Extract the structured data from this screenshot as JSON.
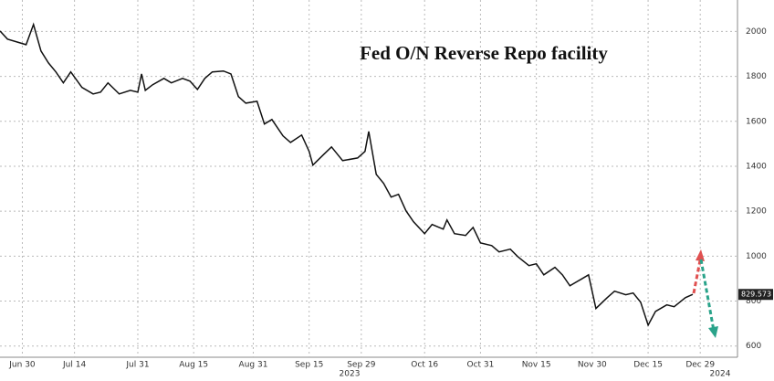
{
  "chart_data": {
    "type": "line",
    "title": "Fed O/N Reverse Repo facility",
    "x": [
      "2023-06-24",
      "2023-06-26",
      "2023-07-01",
      "2023-07-03",
      "2023-07-05",
      "2023-07-07",
      "2023-07-09",
      "2023-07-11",
      "2023-07-13",
      "2023-07-16",
      "2023-07-19",
      "2023-07-21",
      "2023-07-23",
      "2023-07-26",
      "2023-07-29",
      "2023-07-31",
      "2023-08-01",
      "2023-08-02",
      "2023-08-04",
      "2023-08-07",
      "2023-08-09",
      "2023-08-12",
      "2023-08-14",
      "2023-08-16",
      "2023-08-18",
      "2023-08-20",
      "2023-08-23",
      "2023-08-25",
      "2023-08-27",
      "2023-08-29",
      "2023-09-01",
      "2023-09-03",
      "2023-09-05",
      "2023-09-08",
      "2023-09-10",
      "2023-09-13",
      "2023-09-15",
      "2023-09-16",
      "2023-09-19",
      "2023-09-21",
      "2023-09-24",
      "2023-09-28",
      "2023-09-30",
      "2023-10-01",
      "2023-10-03",
      "2023-10-05",
      "2023-10-07",
      "2023-10-09",
      "2023-10-11",
      "2023-10-13",
      "2023-10-16",
      "2023-10-18",
      "2023-10-21",
      "2023-10-22",
      "2023-10-24",
      "2023-10-27",
      "2023-10-29",
      "2023-10-31",
      "2023-11-03",
      "2023-11-05",
      "2023-11-08",
      "2023-11-10",
      "2023-11-13",
      "2023-11-15",
      "2023-11-17",
      "2023-11-20",
      "2023-11-22",
      "2023-11-24",
      "2023-11-27",
      "2023-11-29",
      "2023-12-01",
      "2023-12-04",
      "2023-12-06",
      "2023-12-09",
      "2023-12-11",
      "2023-12-13",
      "2023-12-15",
      "2023-12-17",
      "2023-12-20",
      "2023-12-22",
      "2023-12-25",
      "2023-12-27"
    ],
    "series": [
      {
        "color": "#111111",
        "values": [
          2002,
          1966,
          1941,
          2031,
          1913,
          1860,
          1820,
          1771,
          1820,
          1751,
          1722,
          1730,
          1771,
          1722,
          1738,
          1730,
          1811,
          1738,
          1763,
          1791,
          1771,
          1791,
          1779,
          1742,
          1791,
          1820,
          1824,
          1811,
          1710,
          1681,
          1689,
          1588,
          1608,
          1535,
          1506,
          1539,
          1466,
          1405,
          1454,
          1486,
          1425,
          1437,
          1466,
          1555,
          1364,
          1324,
          1263,
          1275,
          1202,
          1153,
          1100,
          1141,
          1120,
          1161,
          1100,
          1092,
          1128,
          1059,
          1047,
          1019,
          1031,
          998,
          958,
          966,
          917,
          950,
          917,
          868,
          897,
          917,
          767,
          815,
          844,
          828,
          836,
          795,
          693,
          754,
          783,
          775,
          815,
          829.573
        ]
      }
    ],
    "last_label": 829.573,
    "xlim": [
      "2023-06-24",
      "2024-01-08"
    ],
    "xticks": [
      {
        "value": "2023-06-30",
        "label": "Jun 30"
      },
      {
        "value": "2023-07-14",
        "label": "Jul 14"
      },
      {
        "value": "2023-07-31",
        "label": "Jul 31"
      },
      {
        "value": "2023-08-15",
        "label": "Aug 15"
      },
      {
        "value": "2023-08-31",
        "label": "Aug 31"
      },
      {
        "value": "2023-09-15",
        "label": "Sep 15"
      },
      {
        "value": "2023-09-29",
        "label": "Sep 29"
      },
      {
        "value": "2023-10-16",
        "label": "Oct 16"
      },
      {
        "value": "2023-10-31",
        "label": "Oct 31"
      },
      {
        "value": "2023-11-15",
        "label": "Nov 15"
      },
      {
        "value": "2023-11-30",
        "label": "Nov 30"
      },
      {
        "value": "2023-12-15",
        "label": "Dec 15"
      },
      {
        "value": "2023-12-29",
        "label": "Dec 29"
      }
    ],
    "year_labels": [
      "2023",
      "2024"
    ],
    "ylim": [
      550,
      2140
    ],
    "yticks": [
      600,
      800,
      1000,
      1200,
      1400,
      1600,
      1800,
      2000
    ],
    "grid": true
  }
}
